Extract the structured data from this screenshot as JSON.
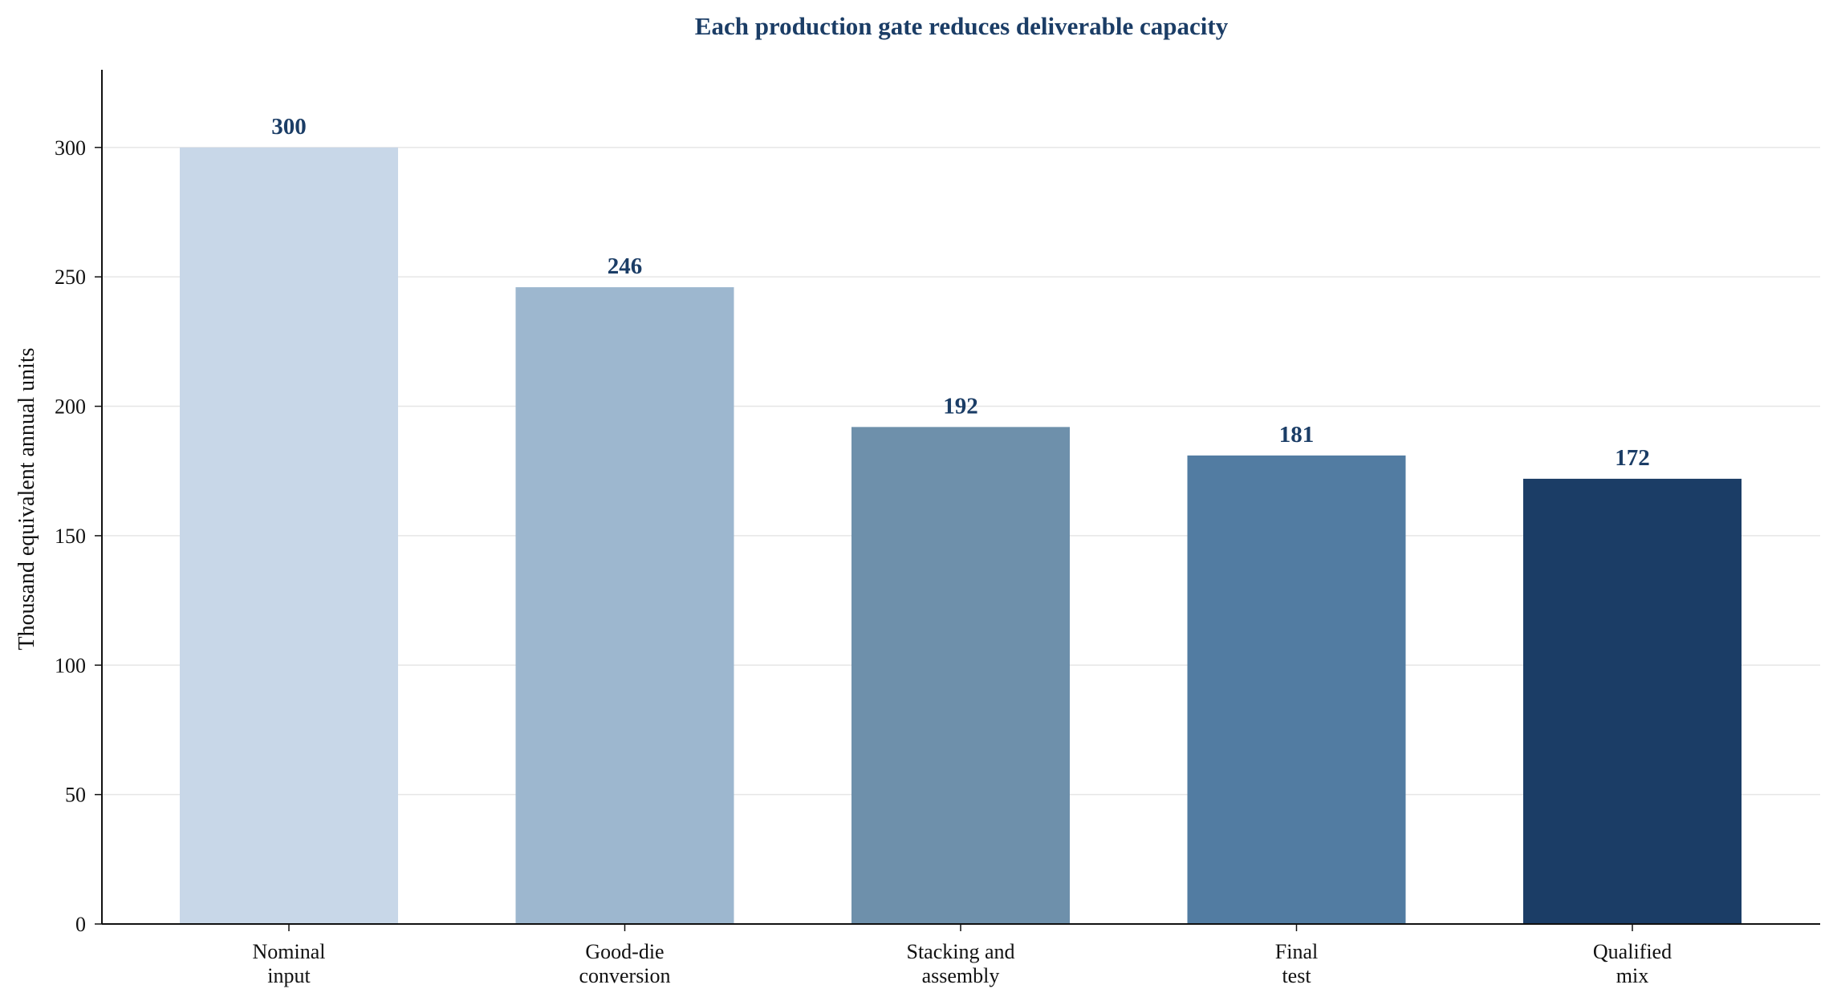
{
  "chart_data": {
    "type": "bar",
    "title": "Each production gate reduces deliverable capacity",
    "xlabel": "",
    "ylabel": "Thousand equivalent annual units",
    "categories": [
      [
        "Nominal",
        "input"
      ],
      [
        "Good-die",
        "conversion"
      ],
      [
        "Stacking and",
        "assembly"
      ],
      [
        "Final",
        "test"
      ],
      [
        "Qualified",
        "mix"
      ]
    ],
    "values": [
      300,
      246,
      192,
      181,
      172
    ],
    "value_labels": [
      "300",
      "246",
      "192",
      "181",
      "172"
    ],
    "bar_colors": [
      "#c8d7e8",
      "#9db7cf",
      "#6e90ab",
      "#527ca2",
      "#1b3d66"
    ],
    "ylim": [
      0,
      330
    ],
    "yticks": [
      0,
      50,
      100,
      150,
      200,
      250,
      300
    ],
    "grid": "horizontal",
    "colors": {
      "title": "#1b3d66",
      "value_label": "#1b3d66",
      "grid": "#e6e6e6",
      "axis": "#111111"
    }
  }
}
